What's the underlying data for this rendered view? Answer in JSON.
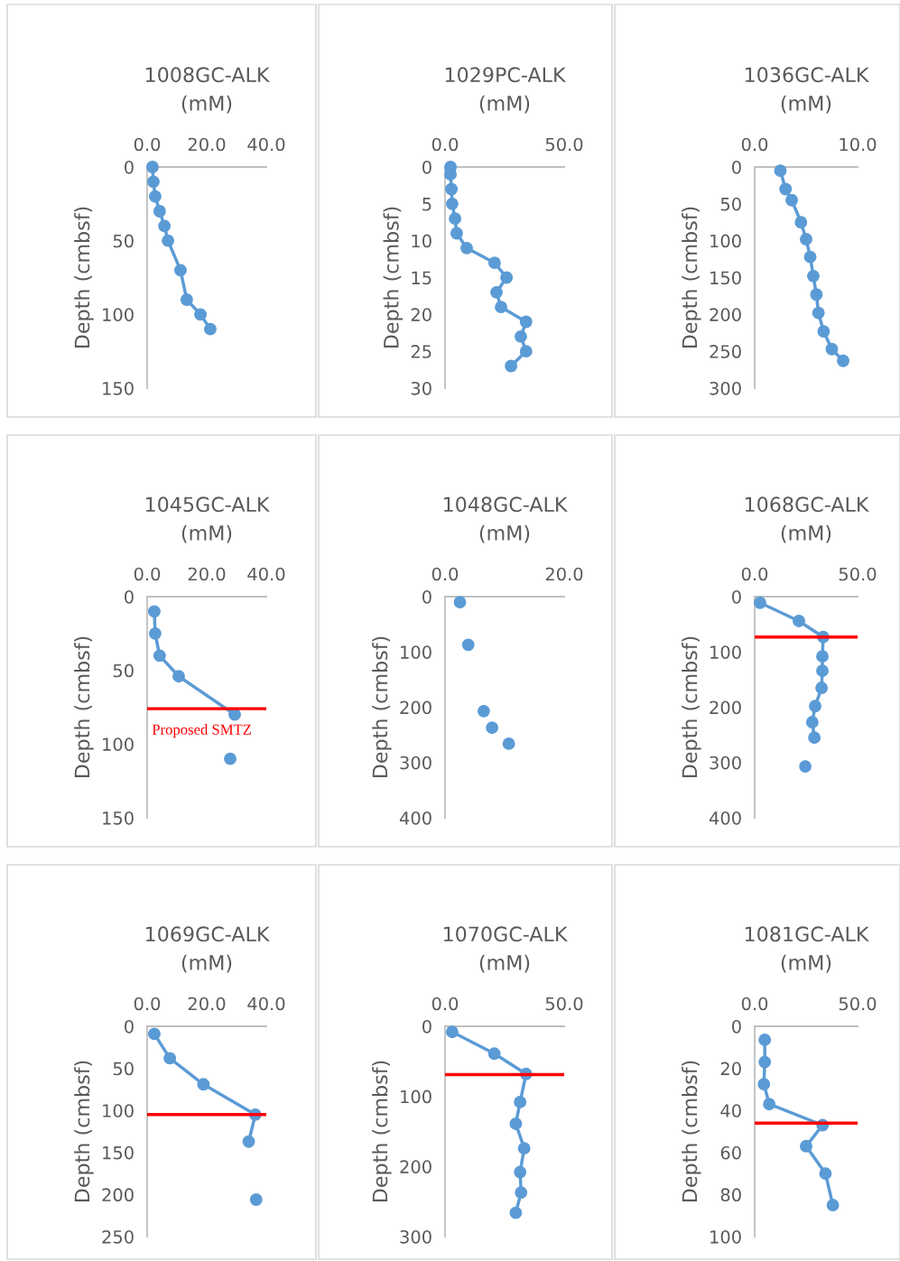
{
  "chart_data": [
    {
      "type": "line",
      "title": "1008GC-ALK\n(mM)",
      "ylabel": "Depth (cmbsf)",
      "xlim": [
        0,
        40
      ],
      "xticks": [
        {
          "value": 0,
          "label": "0.0"
        },
        {
          "value": 20,
          "label": "20.0"
        },
        {
          "value": 40,
          "label": "40.0"
        }
      ],
      "ylim": [
        150,
        0
      ],
      "yticks": [
        0,
        50,
        100,
        150
      ],
      "marker": "circle",
      "grid": false,
      "legend": false,
      "series": [
        {
          "color": "#5b9bd5",
          "x": [
            1.8,
            2.1,
            2.7,
            4.2,
            5.8,
            7.0,
            11.2,
            13.3,
            17.9,
            21.2
          ],
          "values": [
            0,
            10,
            20,
            30,
            40,
            50,
            70,
            90,
            100,
            110
          ]
        }
      ]
    },
    {
      "type": "line",
      "title": "1029PC-ALK\n(mM)",
      "ylabel": "Depth (cmbsf)",
      "xlim": [
        0,
        50
      ],
      "xticks": [
        {
          "value": 0,
          "label": "0.0"
        },
        {
          "value": 50,
          "label": "50.0"
        }
      ],
      "ylim": [
        30,
        0
      ],
      "yticks": [
        0,
        5,
        10,
        15,
        20,
        25,
        30
      ],
      "marker": "circle",
      "grid": false,
      "legend": false,
      "series": [
        {
          "color": "#5b9bd5",
          "x": [
            2.3,
            2.3,
            2.7,
            3.0,
            4.2,
            4.9,
            9.1,
            20.8,
            25.8,
            21.6,
            23.5,
            34.0,
            31.8,
            34.0,
            27.7
          ],
          "values": [
            0,
            1,
            3,
            5,
            7,
            9,
            11,
            13,
            15,
            17,
            19,
            21,
            23,
            25,
            27
          ]
        }
      ]
    },
    {
      "type": "line",
      "title": "1036GC-ALK\n(mM)",
      "ylabel": "Depth (cmbsf)",
      "xlim": [
        0,
        10
      ],
      "xticks": [
        {
          "value": 0,
          "label": "0.0"
        },
        {
          "value": 10,
          "label": "10.0"
        }
      ],
      "ylim": [
        300,
        0
      ],
      "yticks": [
        0,
        50,
        100,
        150,
        200,
        250,
        300
      ],
      "marker": "circle",
      "grid": false,
      "legend": false,
      "series": [
        {
          "color": "#5b9bd5",
          "x": [
            2.5,
            3.0,
            3.6,
            4.5,
            5.0,
            5.4,
            5.7,
            6.0,
            6.2,
            6.7,
            7.5,
            8.6
          ],
          "values": [
            5,
            30,
            45,
            75,
            98,
            122,
            148,
            173,
            198,
            223,
            247,
            263
          ]
        }
      ]
    },
    {
      "type": "line",
      "title": "1045GC-ALK\n(mM)",
      "ylabel": "Depth (cmbsf)",
      "xlim": [
        0,
        40
      ],
      "xticks": [
        {
          "value": 0,
          "label": "0.0"
        },
        {
          "value": 20,
          "label": "20.0"
        },
        {
          "value": 40,
          "label": "40.0"
        }
      ],
      "ylim": [
        150,
        0
      ],
      "yticks": [
        0,
        50,
        100,
        150
      ],
      "marker": "circle",
      "grid": false,
      "legend": false,
      "ref_lines": [
        {
          "axis": "y",
          "value": 76,
          "label": "Proposed SMTZ",
          "color": "#ff0000"
        }
      ],
      "series": [
        {
          "color": "#5b9bd5",
          "x": [
            2.4,
            2.7,
            4.2,
            10.6,
            29.4
          ],
          "values": [
            10,
            25,
            40,
            54,
            80
          ]
        },
        {
          "type": "scatter",
          "color": "#5b9bd5",
          "x": [
            27.9
          ],
          "values": [
            110
          ]
        }
      ]
    },
    {
      "type": "scatter",
      "title": "1048GC-ALK\n(mM)",
      "ylabel": "Depth (cmbsf)",
      "xlim": [
        0,
        20
      ],
      "xticks": [
        {
          "value": 0,
          "label": "0.0"
        },
        {
          "value": 20,
          "label": "20.0"
        }
      ],
      "ylim": [
        400,
        0
      ],
      "yticks": [
        0,
        100,
        200,
        300,
        400
      ],
      "marker": "circle",
      "grid": false,
      "legend": false,
      "series": [
        {
          "color": "#5b9bd5",
          "x": [
            2.5,
            3.9,
            6.5,
            7.9,
            10.7
          ],
          "values": [
            10,
            87,
            207,
            237,
            266
          ]
        }
      ]
    },
    {
      "type": "line",
      "title": "1068GC-ALK\n(mM)",
      "ylabel": "Depth (cmbsf)",
      "xlim": [
        0,
        50
      ],
      "xticks": [
        {
          "value": 0,
          "label": "0.0"
        },
        {
          "value": 50,
          "label": "50.0"
        }
      ],
      "ylim": [
        400,
        0
      ],
      "yticks": [
        0,
        100,
        200,
        300,
        400
      ],
      "marker": "circle",
      "grid": false,
      "legend": false,
      "ref_lines": [
        {
          "axis": "y",
          "value": 73,
          "color": "#ff0000"
        }
      ],
      "series": [
        {
          "color": "#5b9bd5",
          "x": [
            2.6,
            21.5,
            33.3,
            32.9,
            32.9,
            32.5,
            29.4,
            28.0,
            29.0
          ],
          "values": [
            11,
            44,
            73,
            108,
            134,
            165,
            198,
            227,
            255
          ]
        },
        {
          "type": "scatter",
          "color": "#5b9bd5",
          "x": [
            24.6
          ],
          "values": [
            307
          ]
        }
      ]
    },
    {
      "type": "line",
      "title": "1069GC-ALK\n(mM)",
      "ylabel": "Depth (cmbsf)",
      "xlim": [
        0,
        40
      ],
      "xticks": [
        {
          "value": 0,
          "label": "0.0"
        },
        {
          "value": 20,
          "label": "20.0"
        },
        {
          "value": 40,
          "label": "40.0"
        }
      ],
      "ylim": [
        250,
        0
      ],
      "yticks": [
        0,
        50,
        100,
        150,
        200,
        250
      ],
      "marker": "circle",
      "grid": false,
      "legend": false,
      "ref_lines": [
        {
          "axis": "y",
          "value": 105,
          "color": "#ff0000"
        }
      ],
      "series": [
        {
          "color": "#5b9bd5",
          "x": [
            2.4,
            7.6,
            18.9,
            36.3,
            34.1
          ],
          "values": [
            9,
            38,
            69,
            105,
            137
          ]
        },
        {
          "type": "scatter",
          "color": "#5b9bd5",
          "x": [
            36.6
          ],
          "values": [
            206
          ]
        }
      ]
    },
    {
      "type": "line",
      "title": "1070GC-ALK\n(mM)",
      "ylabel": "Depth (cmbsf)",
      "xlim": [
        0,
        50
      ],
      "xticks": [
        {
          "value": 0,
          "label": "0.0"
        },
        {
          "value": 50,
          "label": "50.0"
        }
      ],
      "ylim": [
        300,
        0
      ],
      "yticks": [
        0,
        100,
        200,
        300
      ],
      "marker": "circle",
      "grid": false,
      "legend": false,
      "ref_lines": [
        {
          "axis": "y",
          "value": 69,
          "color": "#ff0000"
        }
      ],
      "series": [
        {
          "color": "#5b9bd5",
          "x": [
            3.0,
            20.7,
            34.0,
            31.5,
            29.7,
            33.2,
            31.5,
            31.9,
            29.7
          ],
          "values": [
            8,
            39,
            68,
            108,
            139,
            174,
            208,
            237,
            266
          ]
        }
      ]
    },
    {
      "type": "line",
      "title": "1081GC-ALK\n(mM)",
      "ylabel": "Depth (cmbsf)",
      "xlim": [
        0,
        50
      ],
      "xticks": [
        {
          "value": 0,
          "label": "0.0"
        },
        {
          "value": 50,
          "label": "50.0"
        }
      ],
      "ylim": [
        100,
        0
      ],
      "yticks": [
        0,
        20,
        40,
        60,
        80,
        100
      ],
      "marker": "circle",
      "grid": false,
      "legend": false,
      "ref_lines": [
        {
          "axis": "y",
          "value": 46,
          "color": "#ff0000"
        }
      ],
      "series": [
        {
          "color": "#5b9bd5",
          "x": [
            4.9,
            4.9,
            4.5,
            7.1,
            33.0,
            25.0,
            34.4,
            38.0
          ],
          "values": [
            6.4,
            17,
            27.5,
            37,
            47,
            57,
            70,
            85
          ]
        }
      ]
    }
  ]
}
